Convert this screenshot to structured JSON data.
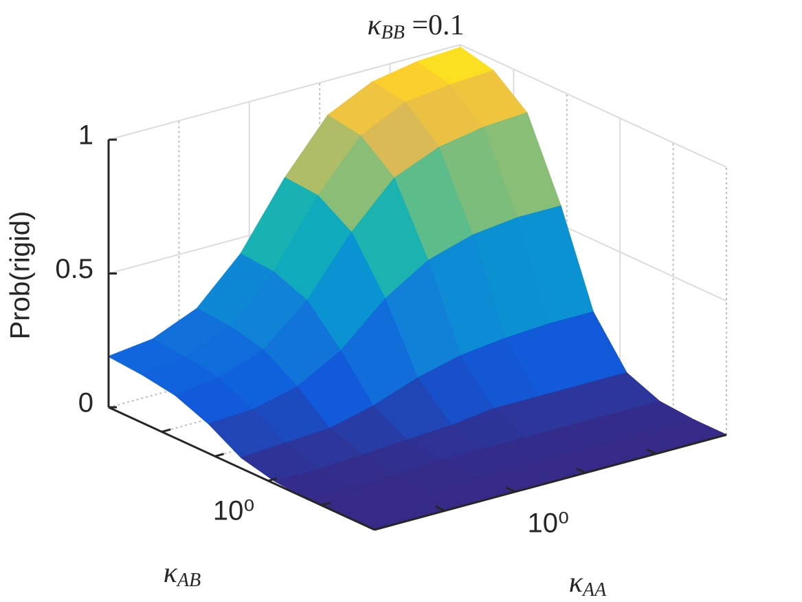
{
  "chart_data": {
    "type": "surface",
    "title": [
      "κ",
      "BB",
      " =0.1"
    ],
    "xlabel": [
      "κ",
      "AA"
    ],
    "ylabel": [
      "κ",
      "AB"
    ],
    "zlabel": "Prob(rigid)",
    "x": [
      0.01,
      0.042,
      0.18,
      0.75,
      3.2,
      13,
      56,
      240,
      1000
    ],
    "y": [
      0.01,
      0.042,
      0.18,
      0.75,
      3.2,
      13,
      56,
      240,
      1000
    ],
    "z": [
      [
        0.0,
        0.0,
        0.0,
        0.0,
        0.0,
        0.0,
        0.0,
        0.0,
        0.0
      ],
      [
        0.0,
        0.0,
        0.0,
        0.0,
        0.0,
        0.0,
        0.0,
        0.0,
        0.0
      ],
      [
        0.0,
        0.0,
        0.0,
        0.01,
        0.01,
        0.01,
        0.01,
        0.01,
        0.01
      ],
      [
        0.01,
        0.01,
        0.02,
        0.03,
        0.04,
        0.06,
        0.06,
        0.06,
        0.06
      ],
      [
        0.04,
        0.05,
        0.06,
        0.1,
        0.16,
        0.2,
        0.22,
        0.23,
        0.23
      ],
      [
        0.11,
        0.12,
        0.16,
        0.25,
        0.4,
        0.5,
        0.55,
        0.57,
        0.57
      ],
      [
        0.16,
        0.18,
        0.24,
        0.38,
        0.59,
        0.75,
        0.82,
        0.85,
        0.86
      ],
      [
        0.18,
        0.2,
        0.27,
        0.43,
        0.67,
        0.85,
        0.93,
        0.95,
        0.96
      ],
      [
        0.19,
        0.21,
        0.28,
        0.44,
        0.68,
        0.87,
        0.95,
        0.98,
        0.99
      ]
    ],
    "xscale": "log",
    "yscale": "log",
    "xlim": [
      0.01,
      1000
    ],
    "ylim": [
      0.01,
      1000
    ],
    "zlim": [
      0,
      1
    ],
    "xticks": [
      {
        "value": 0.1,
        "label": null
      },
      {
        "value": 1,
        "label": "10⁰"
      },
      {
        "value": 10,
        "label": null
      },
      {
        "value": 100,
        "label": null
      }
    ],
    "yticks": [
      {
        "value": 0.1,
        "label": null
      },
      {
        "value": 1,
        "label": "10⁰"
      },
      {
        "value": 10,
        "label": null
      },
      {
        "value": 100,
        "label": null
      }
    ],
    "zticks": [
      0,
      0.5,
      1
    ],
    "grid": true,
    "colormap": "parula"
  }
}
